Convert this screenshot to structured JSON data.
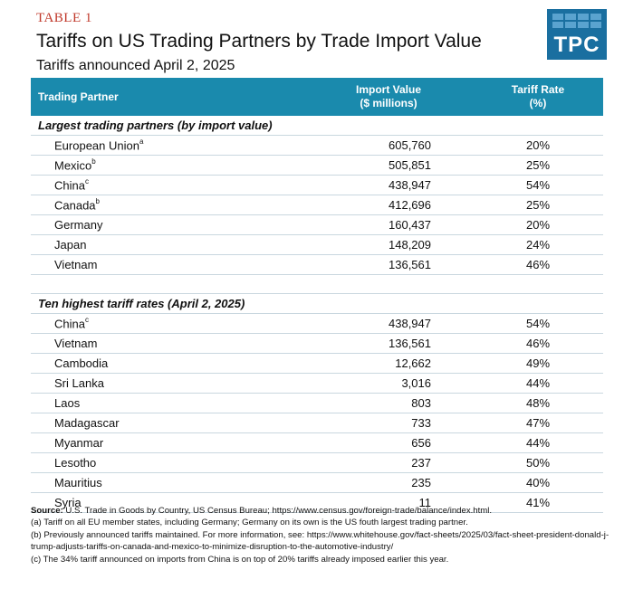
{
  "header": {
    "table_label": "TABLE 1",
    "title": "Tariffs on US Trading Partners by Trade Import Value",
    "subtitle": "Tariffs announced April 2, 2025",
    "logo_text": "TPC"
  },
  "colors": {
    "accent": "#c0392b",
    "header_bg": "#1a8aad",
    "logo_bg": "#1a6fa0"
  },
  "columns": {
    "partner": "Trading Partner",
    "import_line1": "Import Value",
    "import_line2": "($ millions)",
    "tariff_line1": "Tariff Rate",
    "tariff_line2": "(%)"
  },
  "sections": [
    {
      "heading": "Largest trading partners (by import value)",
      "rows": [
        {
          "name": "European Union",
          "note": "a",
          "import": "605,760",
          "tariff": "20%"
        },
        {
          "name": "Mexico",
          "note": "b",
          "import": "505,851",
          "tariff": "25%"
        },
        {
          "name": "China",
          "note": "c",
          "import": "438,947",
          "tariff": "54%"
        },
        {
          "name": "Canada",
          "note": "b",
          "import": "412,696",
          "tariff": "25%"
        },
        {
          "name": "Germany",
          "note": "",
          "import": "160,437",
          "tariff": "20%"
        },
        {
          "name": "Japan",
          "note": "",
          "import": "148,209",
          "tariff": "24%"
        },
        {
          "name": "Vietnam",
          "note": "",
          "import": "136,561",
          "tariff": "46%"
        }
      ]
    },
    {
      "heading": "Ten highest tariff rates (April 2, 2025)",
      "rows": [
        {
          "name": "China",
          "note": "c",
          "import": "438,947",
          "tariff": "54%"
        },
        {
          "name": "Vietnam",
          "note": "",
          "import": "136,561",
          "tariff": "46%"
        },
        {
          "name": "Cambodia",
          "note": "",
          "import": "12,662",
          "tariff": "49%"
        },
        {
          "name": "Sri Lanka",
          "note": "",
          "import": "3,016",
          "tariff": "44%"
        },
        {
          "name": "Laos",
          "note": "",
          "import": "803",
          "tariff": "48%"
        },
        {
          "name": "Madagascar",
          "note": "",
          "import": "733",
          "tariff": "47%"
        },
        {
          "name": "Myanmar",
          "note": "",
          "import": "656",
          "tariff": "44%"
        },
        {
          "name": "Lesotho",
          "note": "",
          "import": "237",
          "tariff": "50%"
        },
        {
          "name": "Mauritius",
          "note": "",
          "import": "235",
          "tariff": "40%"
        },
        {
          "name": "Syria",
          "note": "",
          "import": "11",
          "tariff": "41%"
        }
      ]
    }
  ],
  "notes": {
    "source_label": "Source:",
    "source_text": " U.S. Trade in Goods by Country, US Census Bureau; https://www.census.gov/foreign-trade/balance/index.html.",
    "note_a": "(a) Tariff on all EU member states, including Germany; Germany on its own is the US fouth largest trading partner.",
    "note_b": "(b) Previously announced tariffs maintained. For more information, see: https://www.whitehouse.gov/fact-sheets/2025/03/fact-sheet-president-donald-j-trump-adjusts-tariffs-on-canada-and-mexico-to-minimize-disruption-to-the-automotive-industry/",
    "note_c": "(c) The 34% tariff announced on imports from China is on top of 20% tariffs already imposed earlier this year."
  }
}
